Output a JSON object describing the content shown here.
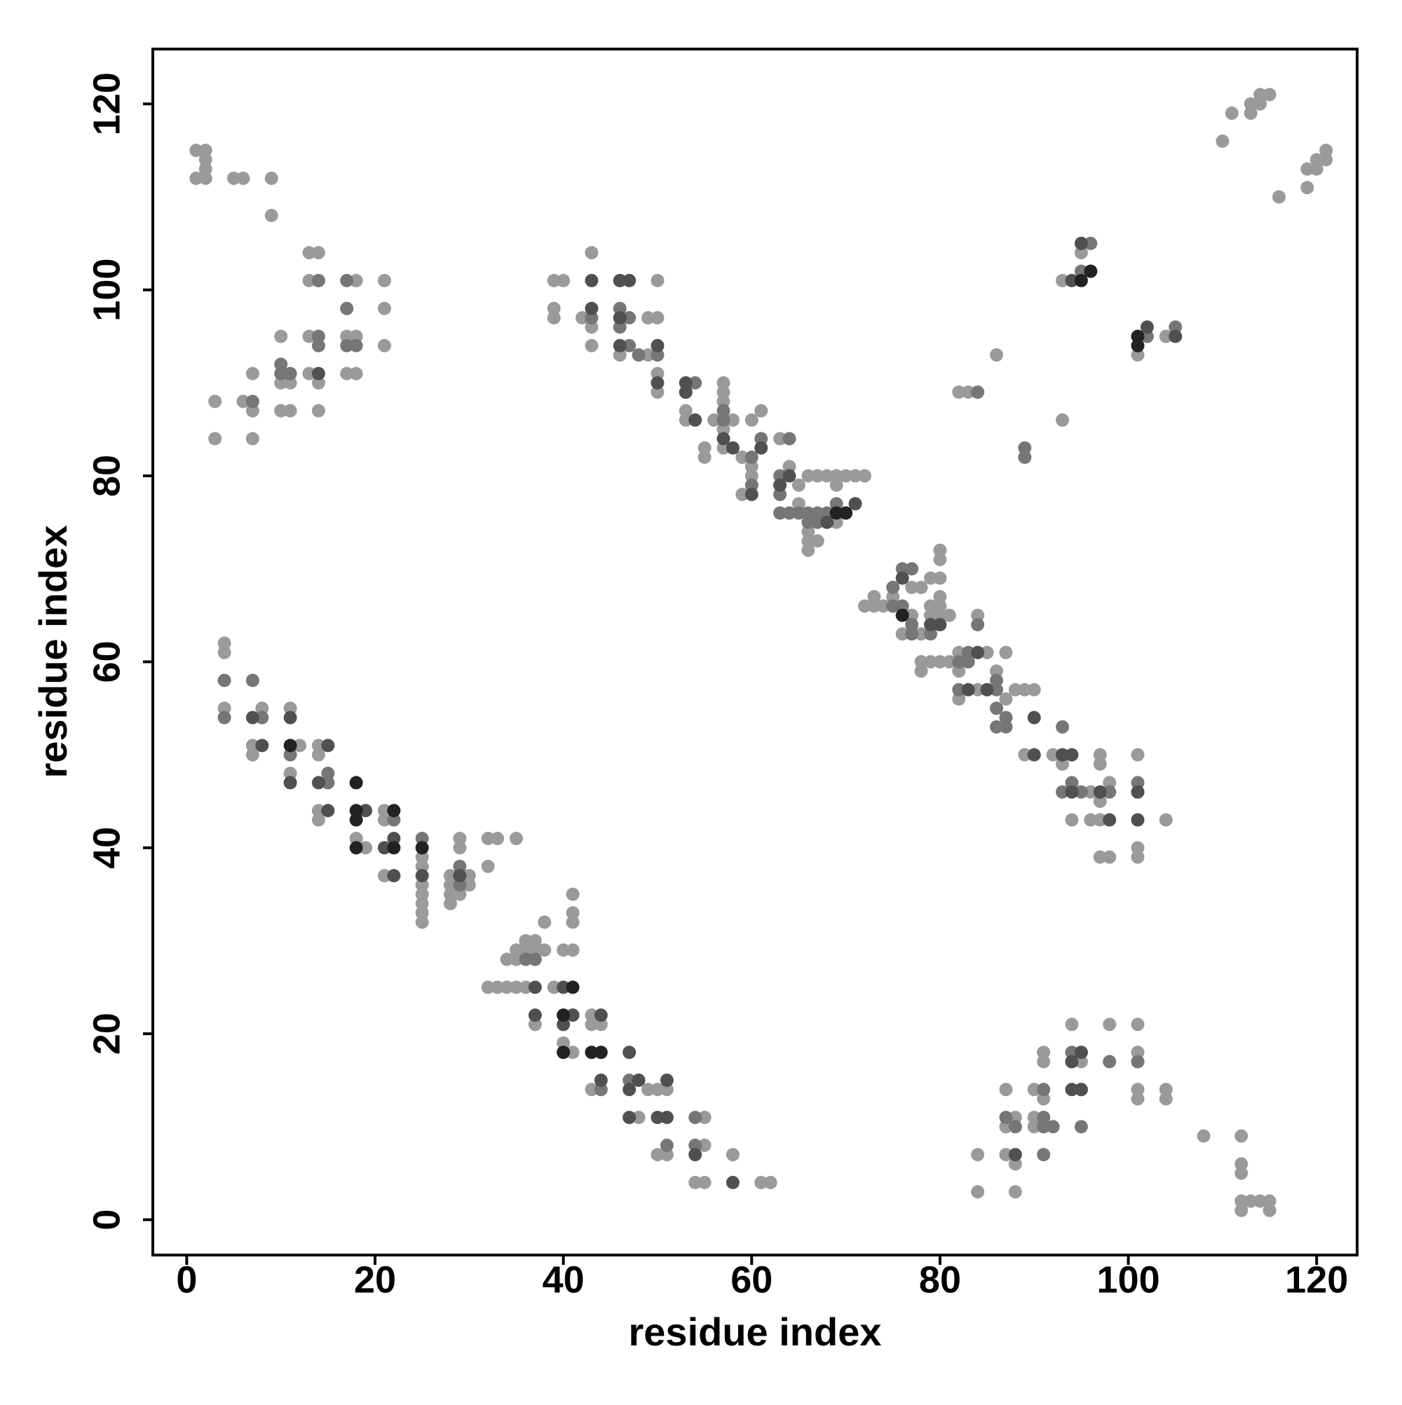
{
  "chart_data": {
    "type": "scatter",
    "xlabel": "residue index",
    "ylabel": "residue index",
    "xlim": [
      -3.6,
      124.3
    ],
    "ylim": [
      -3.8,
      125.9
    ],
    "xticks": [
      0,
      20,
      40,
      60,
      80,
      100,
      120
    ],
    "yticks": [
      0,
      20,
      40,
      60,
      80,
      100,
      120
    ],
    "grid": false,
    "series": [
      {
        "color": "#9a9a9a",
        "x": [
          1,
          2,
          2,
          2,
          1,
          2,
          5,
          6,
          9,
          9,
          3,
          3,
          6,
          7,
          7,
          7,
          10,
          11,
          10,
          11,
          13,
          14,
          14,
          13,
          13,
          13,
          14,
          14,
          17,
          18,
          18,
          17,
          18,
          21,
          21,
          21,
          10,
          4,
          4,
          4,
          7,
          7,
          8,
          11,
          11,
          12,
          14,
          14,
          14,
          14,
          18,
          19,
          21,
          21,
          21,
          25,
          25,
          25,
          25,
          25,
          25,
          25,
          28,
          28,
          28,
          28,
          29,
          29,
          29,
          30,
          30,
          32,
          32,
          33,
          35,
          32,
          33,
          34,
          35,
          36,
          34,
          35,
          35,
          36,
          36,
          37,
          37,
          38,
          38,
          37,
          39,
          40,
          41,
          41,
          41,
          41,
          41,
          40,
          43,
          43,
          44,
          43,
          48,
          49,
          50,
          51,
          50,
          51,
          54,
          55,
          55,
          55,
          58,
          61,
          62,
          39,
          40,
          39,
          39,
          43,
          43,
          43,
          42,
          46,
          46,
          46,
          49,
          50,
          50,
          49,
          50,
          50,
          53,
          53,
          56,
          57,
          57,
          57,
          57,
          57,
          55,
          55,
          58,
          59,
          59,
          60,
          61,
          60,
          60,
          63,
          63,
          64,
          65,
          65,
          66,
          66,
          66,
          66,
          67,
          67,
          68,
          69,
          70,
          71,
          72,
          69,
          69,
          72,
          73,
          73,
          74,
          75,
          75,
          76,
          77,
          77,
          78,
          78,
          79,
          79,
          79,
          80,
          80,
          80,
          80,
          80,
          80,
          81,
          78,
          78,
          79,
          80,
          81,
          82,
          82,
          82,
          84,
          84,
          85,
          85,
          86,
          87,
          87,
          88,
          89,
          90,
          89,
          92,
          93,
          94,
          96,
          96,
          97,
          97,
          97,
          97,
          97,
          98,
          98,
          101,
          101,
          101,
          101,
          104,
          83,
          82,
          86,
          93,
          95,
          93,
          101,
          104,
          110,
          111,
          113,
          113,
          114,
          114,
          115,
          116,
          119,
          119,
          120,
          120,
          121,
          121,
          84,
          84,
          87,
          87,
          87,
          88,
          88,
          88,
          90,
          90,
          90,
          91,
          91,
          91,
          94,
          94,
          95,
          95,
          98,
          101,
          101,
          101,
          101,
          101,
          104,
          104,
          108,
          112,
          112,
          112,
          112,
          113,
          112,
          114,
          115,
          115
        ],
        "values": [
          115,
          115,
          114,
          113,
          112,
          112,
          112,
          112,
          112,
          108,
          88,
          84,
          88,
          84,
          87,
          91,
          87,
          87,
          90,
          90,
          91,
          90,
          87,
          95,
          101,
          104,
          104,
          101,
          91,
          91,
          95,
          95,
          101,
          101,
          98,
          94,
          95,
          62,
          61,
          55,
          51,
          50,
          55,
          55,
          48,
          51,
          51,
          50,
          44,
          43,
          41,
          40,
          44,
          43,
          37,
          39,
          38,
          36,
          35,
          34,
          33,
          32,
          37,
          36,
          35,
          34,
          41,
          40,
          35,
          37,
          36,
          41,
          38,
          41,
          41,
          25,
          25,
          25,
          25,
          25,
          28,
          28,
          29,
          29,
          30,
          29,
          30,
          29,
          32,
          21,
          25,
          29,
          35,
          33,
          32,
          29,
          18,
          19,
          14,
          21,
          21,
          22,
          11,
          14,
          14,
          14,
          7,
          7,
          4,
          4,
          11,
          8,
          7,
          4,
          4,
          101,
          101,
          98,
          97,
          104,
          96,
          94,
          97,
          101,
          97,
          93,
          97,
          97,
          101,
          93,
          91,
          89,
          86,
          87,
          86,
          90,
          89,
          88,
          85,
          83,
          83,
          82,
          86,
          82,
          78,
          86,
          87,
          81,
          80,
          84,
          79,
          81,
          77,
          79,
          80,
          74,
          73,
          72,
          80,
          73,
          80,
          80,
          80,
          80,
          80,
          79,
          75,
          66,
          67,
          66,
          66,
          66,
          67,
          63,
          68,
          65,
          68,
          63,
          69,
          66,
          65,
          72,
          71,
          69,
          67,
          66,
          65,
          65,
          60,
          59,
          60,
          60,
          60,
          61,
          59,
          56,
          65,
          57,
          61,
          57,
          59,
          61,
          56,
          57,
          57,
          57,
          50,
          50,
          49,
          43,
          46,
          43,
          50,
          49,
          45,
          43,
          39,
          39,
          47,
          50,
          40,
          39,
          46,
          43,
          89,
          89,
          93,
          101,
          104,
          86,
          93,
          95,
          116,
          119,
          119,
          120,
          120,
          121,
          121,
          110,
          111,
          113,
          114,
          113,
          114,
          115,
          7,
          3,
          14,
          10,
          7,
          11,
          6,
          3,
          14,
          11,
          10,
          18,
          17,
          13,
          21,
          17,
          18,
          17,
          21,
          21,
          18,
          17,
          14,
          13,
          14,
          13,
          9,
          9,
          6,
          5,
          2,
          2,
          1,
          2,
          2,
          1
        ]
      },
      {
        "color": "#767676",
        "x": [
          7,
          10,
          10,
          11,
          14,
          14,
          14,
          17,
          17,
          17,
          18,
          4,
          4,
          7,
          8,
          11,
          15,
          15,
          22,
          25,
          29,
          29,
          36,
          37,
          44,
          47,
          51,
          54,
          54,
          43,
          46,
          46,
          47,
          47,
          48,
          50,
          53,
          54,
          57,
          57,
          61,
          60,
          60,
          64,
          63,
          63,
          63,
          64,
          65,
          66,
          66,
          67,
          67,
          68,
          69,
          70,
          75,
          75,
          76,
          76,
          77,
          77,
          77,
          79,
          82,
          83,
          83,
          82,
          84,
          86,
          86,
          86,
          86,
          87,
          87,
          93,
          93,
          94,
          95,
          98,
          101,
          84,
          89,
          89,
          96,
          96,
          95,
          102,
          105,
          87,
          88,
          91,
          91,
          91,
          91,
          92,
          94,
          95,
          95,
          98,
          101
        ],
        "values": [
          88,
          92,
          91,
          91,
          94,
          95,
          101,
          101,
          98,
          94,
          94,
          58,
          54,
          58,
          54,
          50,
          48,
          47,
          43,
          41,
          38,
          36,
          28,
          28,
          14,
          15,
          8,
          8,
          11,
          97,
          98,
          96,
          97,
          94,
          93,
          93,
          89,
          90,
          87,
          86,
          84,
          82,
          79,
          84,
          80,
          78,
          76,
          76,
          76,
          76,
          75,
          75,
          76,
          76,
          77,
          76,
          68,
          66,
          66,
          70,
          70,
          64,
          63,
          63,
          60,
          61,
          60,
          57,
          64,
          58,
          57,
          55,
          53,
          53,
          54,
          53,
          46,
          47,
          46,
          46,
          47,
          89,
          83,
          82,
          105,
          102,
          102,
          95,
          96,
          11,
          10,
          14,
          11,
          10,
          7,
          10,
          18,
          10,
          14,
          17,
          17
        ]
      },
      {
        "color": "#505050",
        "x": [
          14,
          7,
          8,
          11,
          11,
          14,
          15,
          15,
          19,
          21,
          22,
          22,
          25,
          29,
          37,
          37,
          40,
          40,
          41,
          44,
          44,
          47,
          47,
          48,
          47,
          50,
          51,
          51,
          54,
          58,
          43,
          43,
          46,
          46,
          46,
          47,
          50,
          50,
          53,
          53,
          54,
          57,
          58,
          61,
          60,
          63,
          64,
          68,
          71,
          76,
          79,
          80,
          83,
          84,
          85,
          90,
          90,
          94,
          93,
          94,
          97,
          98,
          101,
          101,
          94,
          102,
          105,
          95,
          88,
          94,
          94,
          95,
          95
        ],
        "values": [
          91,
          54,
          51,
          54,
          47,
          47,
          51,
          44,
          44,
          40,
          41,
          37,
          37,
          37,
          25,
          22,
          25,
          21,
          22,
          22,
          15,
          18,
          14,
          15,
          11,
          11,
          15,
          11,
          7,
          4,
          101,
          98,
          101,
          97,
          94,
          101,
          94,
          90,
          90,
          89,
          86,
          84,
          83,
          83,
          78,
          79,
          80,
          75,
          77,
          69,
          64,
          64,
          57,
          61,
          57,
          54,
          50,
          50,
          50,
          46,
          46,
          43,
          43,
          46,
          101,
          96,
          95,
          105,
          7,
          17,
          14,
          18,
          14
        ]
      },
      {
        "color": "#222222",
        "x": [
          11,
          18,
          18,
          18,
          22,
          22,
          25,
          40,
          40,
          43,
          44,
          41,
          69,
          70,
          76,
          95,
          101,
          101,
          96,
          18
        ],
        "values": [
          51,
          47,
          43,
          40,
          44,
          40,
          40,
          22,
          18,
          18,
          18,
          25,
          76,
          76,
          65,
          101,
          95,
          94,
          102,
          44
        ]
      }
    ]
  }
}
